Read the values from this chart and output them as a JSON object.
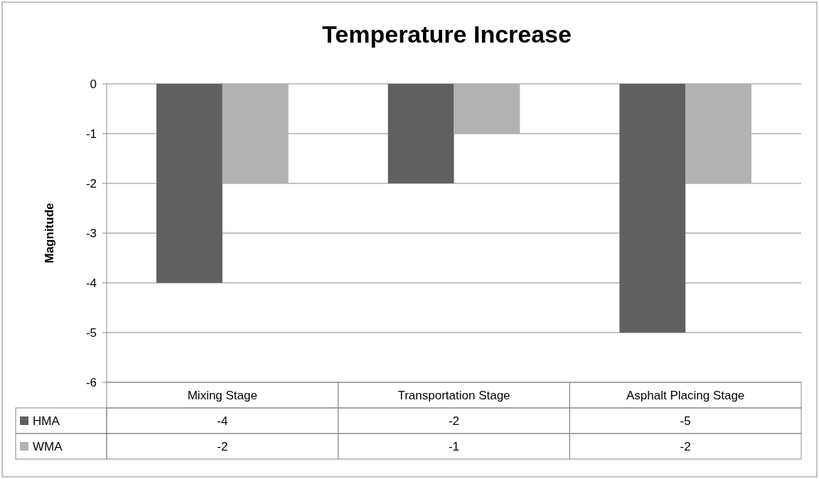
{
  "chart_data": {
    "type": "bar",
    "title": "Temperature Increase",
    "ylabel": "Magnitude",
    "categories": [
      "Mixing Stage",
      "Transportation Stage",
      "Asphalt Placing Stage"
    ],
    "series": [
      {
        "name": "HMA",
        "color": "#606060",
        "values": [
          -4,
          -2,
          -5
        ]
      },
      {
        "name": "WMA",
        "color": "#b2b2b2",
        "values": [
          -2,
          -1,
          -2
        ]
      }
    ],
    "ylim": [
      -6,
      0
    ],
    "yticks": [
      -6,
      -5,
      -4,
      -3,
      -2,
      -1,
      0
    ],
    "grid": "y",
    "legend": "bottom",
    "data_labels": true
  }
}
